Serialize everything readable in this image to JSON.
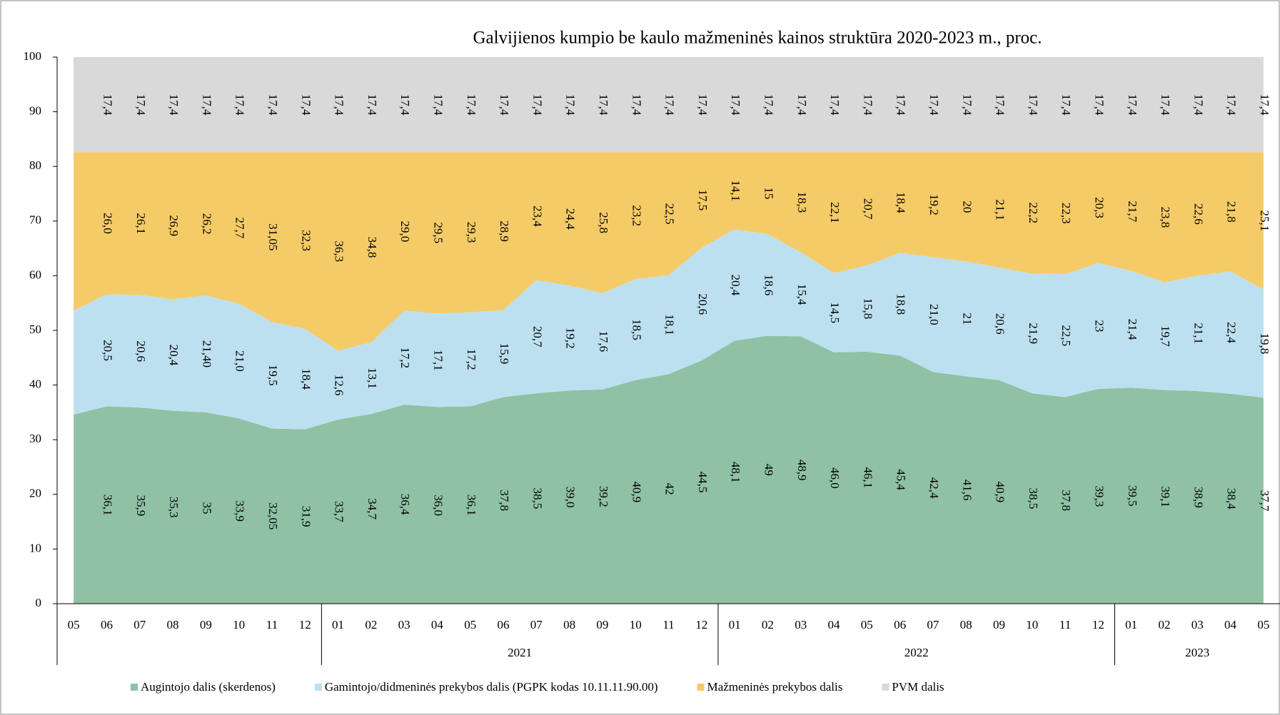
{
  "chart_data": {
    "type": "stacked_area",
    "title": "Galvijienos kumpio be kaulo mažmeninės kainos struktūra 2020-2023 m., proc.",
    "categories": [
      "05",
      "06",
      "07",
      "08",
      "09",
      "10",
      "11",
      "12",
      "01",
      "02",
      "03",
      "04",
      "05",
      "06",
      "07",
      "08",
      "09",
      "10",
      "11",
      "12",
      "01",
      "02",
      "03",
      "04",
      "05",
      "06",
      "07",
      "08",
      "09",
      "10",
      "11",
      "12",
      "01",
      "02",
      "03",
      "04",
      "05"
    ],
    "years": [
      "2021",
      "2022",
      "2023"
    ],
    "ylim": [
      0,
      100
    ],
    "yticks": [
      0,
      10,
      20,
      30,
      40,
      50,
      60,
      70,
      80,
      90,
      100
    ],
    "series": [
      {
        "name": "Augintojo dalis (skerdenos)",
        "color": "#8fc1a5",
        "values": [
          34.6,
          36.1,
          35.9,
          35.3,
          35,
          33.9,
          32.05,
          31.9,
          33.7,
          34.7,
          36.4,
          36.0,
          36.1,
          37.8,
          38.5,
          39.0,
          39.2,
          40.9,
          42,
          44.5,
          48.1,
          49,
          48.9,
          46.0,
          46.1,
          45.4,
          42.4,
          41.6,
          40.9,
          38.5,
          37.8,
          39.3,
          39.5,
          39.1,
          38.9,
          38.4,
          37.7
        ],
        "value_labels": [
          null,
          "36,1",
          "35,9",
          "35,3",
          "35",
          "33,9",
          "32,05",
          "31,9",
          "33,7",
          "34,7",
          "36,4",
          "36,0",
          "36,1",
          "37,8",
          "38,5",
          "39,0",
          "39,2",
          "40,9",
          "42",
          "44,5",
          "48,1",
          "49",
          "48,9",
          "46,0",
          "46,1",
          "45,4",
          "42,4",
          "41,6",
          "40,9",
          "38,5",
          "37,8",
          "39,3",
          "39,5",
          "39,1",
          "38,9",
          "38,4",
          "37,7"
        ]
      },
      {
        "name": "Gamintojo/didmeninės prekybos dalis (PGPK kodas 10.11.11.90.00)",
        "color": "#bde0f0",
        "values": [
          19.0,
          20.5,
          20.6,
          20.4,
          21.4,
          21.0,
          19.5,
          18.4,
          12.6,
          13.1,
          17.2,
          17.1,
          17.2,
          15.9,
          20.7,
          19.2,
          17.6,
          18.5,
          18.1,
          20.6,
          20.4,
          18.6,
          15.4,
          14.5,
          15.8,
          18.8,
          21.0,
          21,
          20.6,
          21.9,
          22.5,
          23,
          21.4,
          19.7,
          21.1,
          22.4,
          19.8
        ],
        "value_labels": [
          null,
          "20,5",
          "20,6",
          "20,4",
          "21,40",
          "21,0",
          "19,5",
          "18,4",
          "12,6",
          "13,1",
          "17,2",
          "17,1",
          "17,2",
          "15,9",
          "20,7",
          "19,2",
          "17,6",
          "18,5",
          "18,1",
          "20,6",
          "20,4",
          "18,6",
          "15,4",
          "14,5",
          "15,8",
          "18,8",
          "21,0",
          "21",
          "20,6",
          "21,9",
          "22,5",
          "23",
          "21,4",
          "19,7",
          "21,1",
          "22,4",
          "19,8"
        ]
      },
      {
        "name": "Mažmeninės prekybos dalis",
        "color": "#f5cb68",
        "values": [
          29.0,
          26.0,
          26.1,
          26.9,
          26.2,
          27.7,
          31.05,
          32.3,
          36.3,
          34.8,
          29.0,
          29.5,
          29.3,
          28.9,
          23.4,
          24.4,
          25.8,
          23.2,
          22.5,
          17.5,
          14.1,
          15,
          18.3,
          22.1,
          20.7,
          18.4,
          19.2,
          20,
          21.1,
          22.2,
          22.3,
          20.3,
          21.7,
          23.8,
          22.6,
          21.8,
          25.1
        ],
        "value_labels": [
          null,
          "26,0",
          "26,1",
          "26,9",
          "26,2",
          "27,7",
          "31,05",
          "32,3",
          "36,3",
          "34,8",
          "29,0",
          "29,5",
          "29,3",
          "28,9",
          "23,4",
          "24,4",
          "25,8",
          "23,2",
          "22,5",
          "17,5",
          "14,1",
          "15",
          "18,3",
          "22,1",
          "20,7",
          "18,4",
          "19,2",
          "20",
          "21,1",
          "22,2",
          "22,3",
          "20,3",
          "21,7",
          "23,8",
          "22,6",
          "21,8",
          "25,1"
        ]
      },
      {
        "name": "PVM dalis",
        "color": "#d9d9d9",
        "values": [
          17.4,
          17.4,
          17.4,
          17.4,
          17.4,
          17.4,
          17.4,
          17.4,
          17.4,
          17.4,
          17.4,
          17.4,
          17.4,
          17.4,
          17.4,
          17.4,
          17.4,
          17.4,
          17.4,
          17.4,
          17.4,
          17.4,
          17.4,
          17.4,
          17.4,
          17.4,
          17.4,
          17.4,
          17.4,
          17.4,
          17.4,
          17.4,
          17.4,
          17.4,
          17.4,
          17.4,
          17.4
        ],
        "value_labels": [
          null,
          "17,4",
          "17,4",
          "17,4",
          "17,4",
          "17,4",
          "17,4",
          "17,4",
          "17,4",
          "17,4",
          "17,4",
          "17,4",
          "17,4",
          "17,4",
          "17,4",
          "17,4",
          "17,4",
          "17,4",
          "17,4",
          "17,4",
          "17,4",
          "17,4",
          "17,4",
          "17,4",
          "17,4",
          "17,4",
          "17,4",
          "17,4",
          "17,4",
          "17,4",
          "17,4",
          "17,4",
          "17,4",
          "17,4",
          "17,4",
          "17,4",
          "17,4"
        ]
      }
    ]
  }
}
